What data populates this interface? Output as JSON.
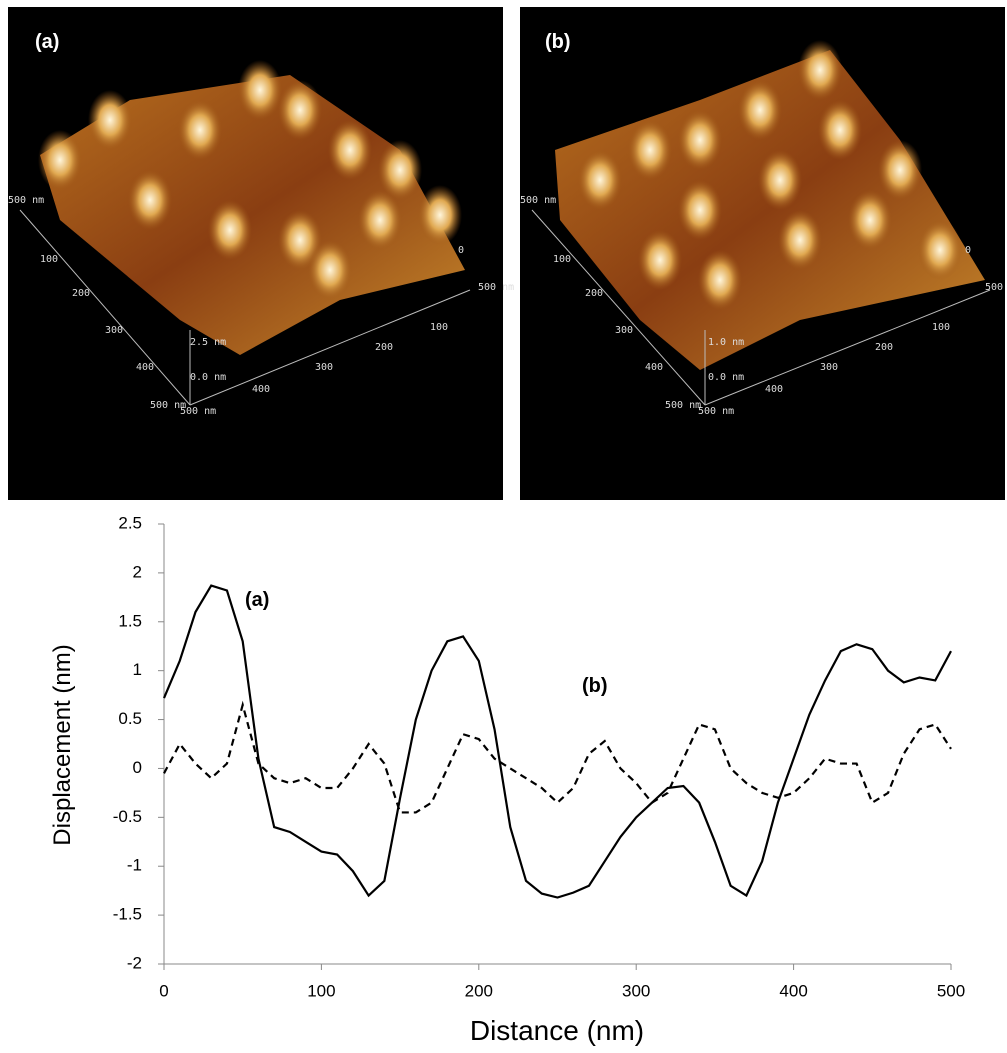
{
  "afm_images": [
    {
      "label": "(a)",
      "axis_labels": [
        "500 nm",
        "100",
        "200",
        "300",
        "400",
        "500 nm",
        "500 nm",
        "2.5 nm",
        "0.0 nm",
        "400",
        "300",
        "200",
        "100",
        "500 nm",
        "0"
      ]
    },
    {
      "label": "(b)",
      "axis_labels": [
        "500 nm",
        "100",
        "200",
        "300",
        "400",
        "500 nm",
        "500 nm",
        "1.0 nm",
        "0.0 nm",
        "400",
        "300",
        "200",
        "100",
        "500",
        "0"
      ]
    }
  ],
  "chart_data": {
    "type": "line",
    "x_label": "Distance (nm)",
    "y_label": "Displacement (nm)",
    "annotations": [
      "(a)",
      "(b)"
    ],
    "x": [
      0,
      10,
      20,
      30,
      40,
      50,
      60,
      70,
      80,
      90,
      100,
      110,
      120,
      130,
      140,
      150,
      160,
      170,
      180,
      190,
      200,
      210,
      220,
      230,
      240,
      250,
      260,
      270,
      280,
      290,
      300,
      310,
      320,
      330,
      340,
      350,
      360,
      370,
      380,
      390,
      400,
      410,
      420,
      430,
      440,
      450,
      460,
      470,
      480,
      490,
      500
    ],
    "series": [
      {
        "color": "#000000",
        "line_style": "solid",
        "values": [
          0.72,
          1.1,
          1.6,
          1.87,
          1.82,
          1.3,
          0.1,
          -0.6,
          -0.65,
          -0.75,
          -0.85,
          -0.88,
          -1.05,
          -1.3,
          -1.15,
          -0.3,
          0.5,
          1.0,
          1.3,
          1.35,
          1.1,
          0.4,
          -0.6,
          -1.15,
          -1.28,
          -1.32,
          -1.27,
          -1.2,
          -0.95,
          -0.7,
          -0.5,
          -0.35,
          -0.2,
          -0.18,
          -0.35,
          -0.75,
          -1.2,
          -1.3,
          -0.95,
          -0.35,
          0.1,
          0.55,
          0.9,
          1.2,
          1.27,
          1.22,
          1.0,
          0.88,
          0.93,
          0.9,
          1.2
        ]
      },
      {
        "color": "#000000",
        "line_style": "dashed",
        "values": [
          -0.05,
          0.25,
          0.05,
          -0.1,
          0.05,
          0.65,
          0.05,
          -0.1,
          -0.15,
          -0.1,
          -0.2,
          -0.2,
          0.0,
          0.25,
          0.05,
          -0.45,
          -0.45,
          -0.35,
          0.0,
          0.35,
          0.3,
          0.1,
          0.0,
          -0.1,
          -0.2,
          -0.35,
          -0.2,
          0.15,
          0.28,
          0.0,
          -0.15,
          -0.35,
          -0.25,
          0.1,
          0.45,
          0.4,
          0.0,
          -0.15,
          -0.25,
          -0.3,
          -0.25,
          -0.1,
          0.1,
          0.05,
          0.05,
          -0.35,
          -0.25,
          0.15,
          0.4,
          0.45,
          0.2
        ]
      }
    ],
    "xlim": [
      0,
      500
    ],
    "xticks": [
      0,
      100,
      200,
      300,
      400,
      500
    ],
    "ylim": [
      -2,
      2.5
    ],
    "yticks": [
      -2,
      -1.5,
      -1,
      -0.5,
      0,
      0.5,
      1,
      1.5,
      2,
      2.5
    ]
  }
}
